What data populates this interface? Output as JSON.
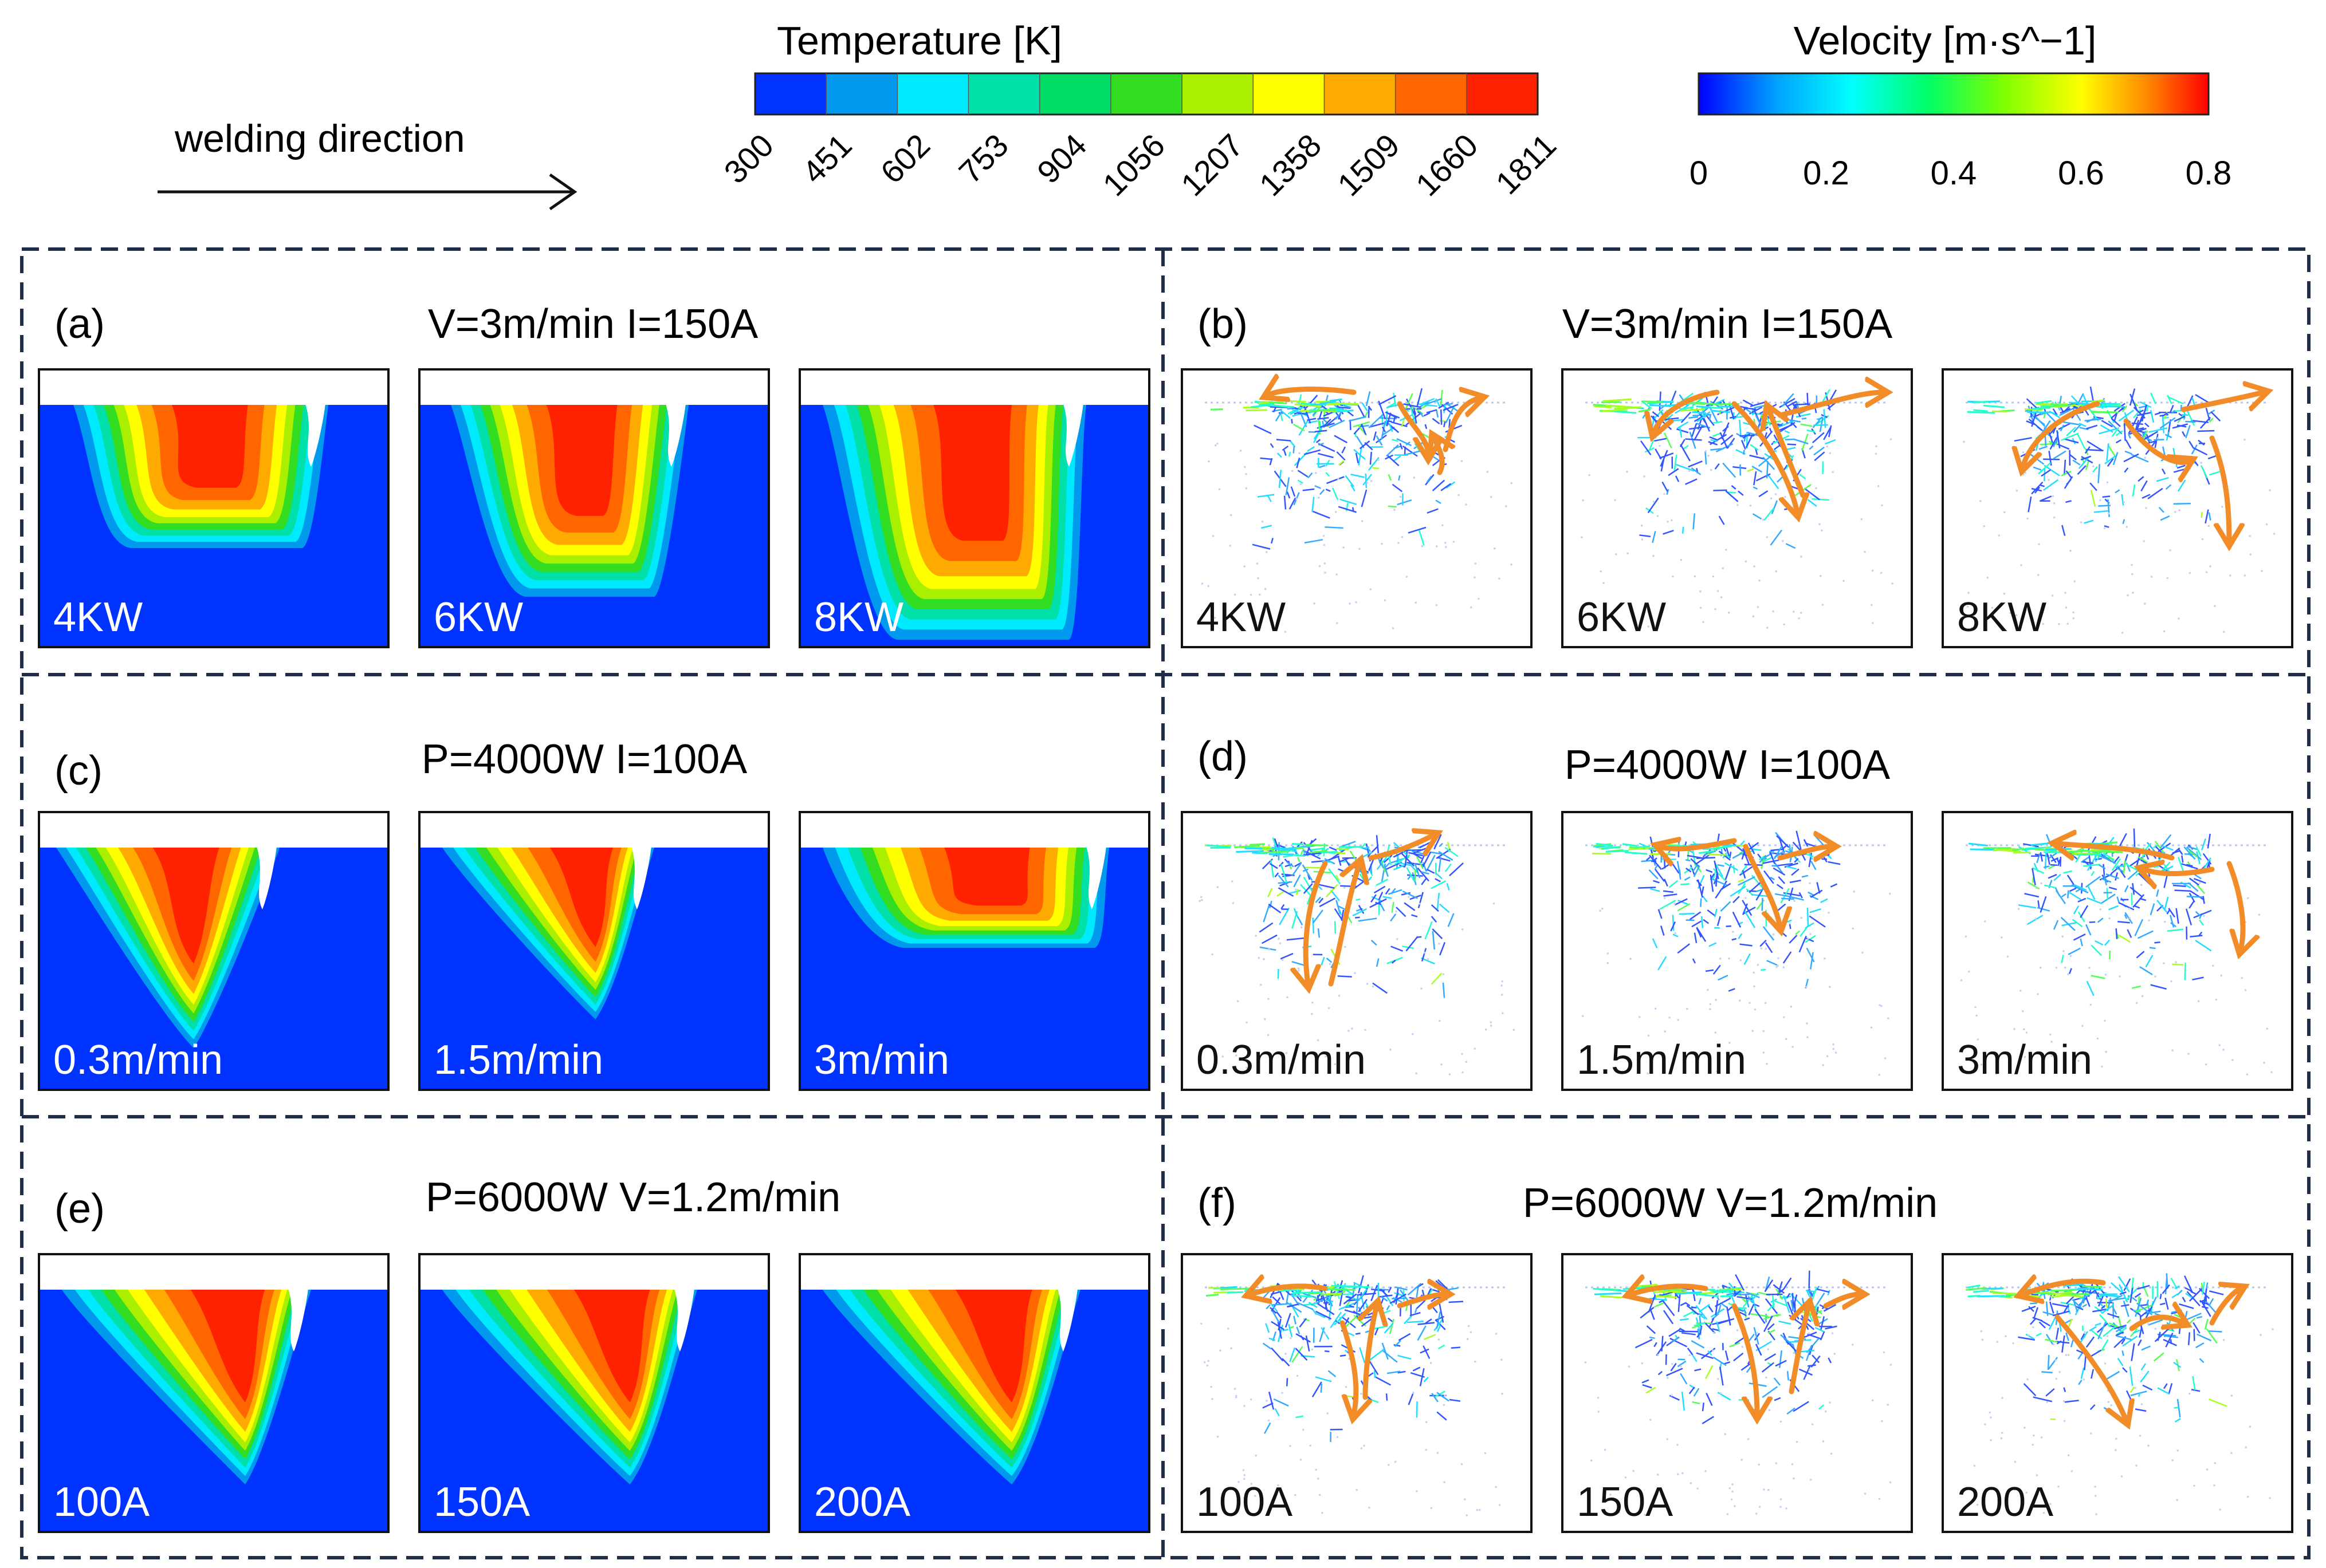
{
  "header": {
    "direction_label": "welding direction",
    "temperature_title": "Temperature [K]",
    "temperature_ticks": [
      "300",
      "451",
      "602",
      "753",
      "904",
      "1056",
      "1207",
      "1358",
      "1509",
      "1660",
      "1811"
    ],
    "temperature_colors": [
      "#0033ff",
      "#0099ee",
      "#00eaff",
      "#00e0a8",
      "#00dd66",
      "#33dd22",
      "#aaee00",
      "#ffff00",
      "#ffaa00",
      "#ff6600",
      "#ff2200"
    ],
    "velocity_title": "Velocity [m·s^−1]",
    "velocity_ticks": [
      "0",
      "0.2",
      "0.4",
      "0.6",
      "0.8"
    ],
    "velocity_gradient": [
      "#0000ff",
      "#00a0ff",
      "#00ffff",
      "#00ff66",
      "#80ff00",
      "#ffff00",
      "#ff8800",
      "#ff0000"
    ]
  },
  "panels": {
    "a": {
      "letter": "(a)",
      "title": "V=3m/min I=150A",
      "labels": [
        "4KW",
        "6KW",
        "8KW"
      ]
    },
    "b": {
      "letter": "(b)",
      "title": "V=3m/min I=150A",
      "labels": [
        "4KW",
        "6KW",
        "8KW"
      ]
    },
    "c": {
      "letter": "(c)",
      "title": "P=4000W I=100A",
      "labels": [
        "0.3m/min",
        "1.5m/min",
        "3m/min"
      ]
    },
    "d": {
      "letter": "(d)",
      "title": "P=4000W I=100A",
      "labels": [
        "0.3m/min",
        "1.5m/min",
        "3m/min"
      ]
    },
    "e": {
      "letter": "(e)",
      "title": "P=6000W V=1.2m/min",
      "labels": [
        "100A",
        "150A",
        "200A"
      ]
    },
    "f": {
      "letter": "(f)",
      "title": "P=6000W V=1.2m/min",
      "labels": [
        "100A",
        "150A",
        "200A"
      ]
    }
  },
  "colors": {
    "substrate": "#0033ff",
    "frame": "#1f2d46",
    "arrow": "#f28c28"
  }
}
